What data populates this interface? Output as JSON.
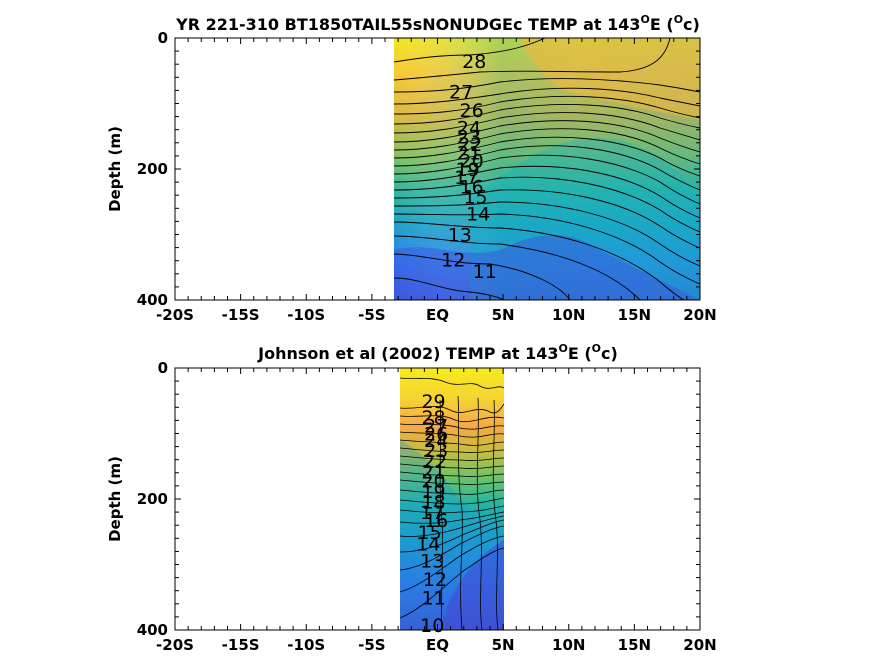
{
  "chart_data": [
    {
      "type": "heatmap",
      "title_main": "YR 221-310 BT1850TAIL55sNONUDGEc TEMP at 143",
      "title_deg": "O",
      "title_e": "E (",
      "title_unit": "c)",
      "xlabel": "",
      "ylabel": "Depth (m)",
      "xlim": [
        -20,
        20
      ],
      "ylim": [
        400,
        0
      ],
      "x_ticks": [
        -20,
        -15,
        -10,
        -5,
        0,
        5,
        10,
        15,
        20
      ],
      "x_tick_labels": [
        "-20S",
        "-15S",
        "-10S",
        "-5S",
        "EQ",
        "5N",
        "10N",
        "15N",
        "20N"
      ],
      "y_ticks": [
        0,
        200,
        400
      ],
      "y_tick_labels": [
        "0",
        "200",
        "400"
      ],
      "data_extent_x": [
        -2.9,
        20
      ],
      "colormap": "parula",
      "contour_labels": [
        {
          "value": "28",
          "x": 2.8,
          "depth": 35
        },
        {
          "value": "27",
          "x": 1.8,
          "depth": 82
        },
        {
          "value": "26",
          "x": 2.6,
          "depth": 110
        },
        {
          "value": "24",
          "x": 2.4,
          "depth": 137
        },
        {
          "value": "23",
          "x": 2.4,
          "depth": 150
        },
        {
          "value": "22",
          "x": 2.5,
          "depth": 162
        },
        {
          "value": "21",
          "x": 2.4,
          "depth": 175
        },
        {
          "value": "20",
          "x": 2.6,
          "depth": 187
        },
        {
          "value": "19",
          "x": 2.3,
          "depth": 200
        },
        {
          "value": "17",
          "x": 2.2,
          "depth": 212
        },
        {
          "value": "16",
          "x": 2.6,
          "depth": 227
        },
        {
          "value": "15",
          "x": 2.9,
          "depth": 242
        },
        {
          "value": "14",
          "x": 3.1,
          "depth": 268
        },
        {
          "value": "13",
          "x": 1.7,
          "depth": 300
        },
        {
          "value": "12",
          "x": 1.2,
          "depth": 338
        },
        {
          "value": "11",
          "x": 3.6,
          "depth": 356
        }
      ]
    },
    {
      "type": "heatmap",
      "title_main": "Johnson et al (2002) TEMP at 143",
      "title_deg": "O",
      "title_e": "E (",
      "title_unit": "c)",
      "xlabel": "",
      "ylabel": "Depth (m)",
      "xlim": [
        -20,
        20
      ],
      "ylim": [
        400,
        0
      ],
      "x_ticks": [
        -20,
        -15,
        -10,
        -5,
        0,
        5,
        10,
        15,
        20
      ],
      "x_tick_labels": [
        "-20S",
        "-15S",
        "-10S",
        "-5S",
        "EQ",
        "5N",
        "10N",
        "15N",
        "20N"
      ],
      "y_ticks": [
        0,
        200,
        400
      ],
      "y_tick_labels": [
        "0",
        "200",
        "400"
      ],
      "data_extent_x": [
        -2.5,
        5
      ],
      "colormap": "parula",
      "contour_labels": [
        {
          "value": "29",
          "x": -0.3,
          "depth": 50
        },
        {
          "value": "28",
          "x": -0.3,
          "depth": 75
        },
        {
          "value": "27",
          "x": -0.1,
          "depth": 88
        },
        {
          "value": "26",
          "x": -0.1,
          "depth": 100
        },
        {
          "value": "24",
          "x": -0.1,
          "depth": 110
        },
        {
          "value": "23",
          "x": -0.1,
          "depth": 125
        },
        {
          "value": "22",
          "x": -0.2,
          "depth": 142
        },
        {
          "value": "21",
          "x": -0.3,
          "depth": 158
        },
        {
          "value": "20",
          "x": -0.3,
          "depth": 172
        },
        {
          "value": "19",
          "x": -0.3,
          "depth": 188
        },
        {
          "value": "18",
          "x": -0.3,
          "depth": 204
        },
        {
          "value": "17",
          "x": -0.4,
          "depth": 220
        },
        {
          "value": "16",
          "x": -0.1,
          "depth": 232
        },
        {
          "value": "15",
          "x": -0.6,
          "depth": 250
        },
        {
          "value": "14",
          "x": -0.7,
          "depth": 268
        },
        {
          "value": "13",
          "x": -0.4,
          "depth": 294
        },
        {
          "value": "12",
          "x": -0.2,
          "depth": 322
        },
        {
          "value": "11",
          "x": -0.3,
          "depth": 350
        },
        {
          "value": "10",
          "x": -0.4,
          "depth": 392
        }
      ]
    }
  ]
}
